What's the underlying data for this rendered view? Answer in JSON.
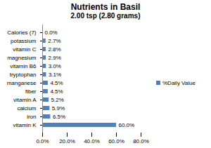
{
  "chart_data": {
    "type": "bar",
    "orientation": "horizontal",
    "title": "Nutrients in Basil",
    "subtitle": "2.00 tsp (2.80 grams)",
    "categories": [
      "Calories (7)",
      "potassium",
      "vitamin C",
      "magnesium",
      "vitamin B6",
      "tryptophan",
      "manganese",
      "fiber",
      "vitamin A",
      "calcium",
      "iron",
      "vitamin K"
    ],
    "series": [
      {
        "name": "%Daily Value",
        "color": "#4f81bd",
        "values": [
          0.0,
          2.7,
          2.8,
          2.9,
          3.0,
          3.1,
          4.5,
          4.5,
          5.2,
          5.9,
          6.5,
          60.0
        ],
        "value_labels": [
          "0.0%",
          "2.7%",
          "2.8%",
          "2.9%",
          "3.0%",
          "3.1%",
          "4.5%",
          "4.5%",
          "5.2%",
          "5.9%",
          "6.5%",
          "60.0%"
        ]
      }
    ],
    "xlim": [
      0,
      80
    ],
    "xticks": [
      {
        "value": 0,
        "label": "0.0%"
      },
      {
        "value": 20,
        "label": "20.0%"
      },
      {
        "value": 40,
        "label": "40.0%"
      },
      {
        "value": 60,
        "label": "60.0%"
      },
      {
        "value": 80,
        "label": "80.0%"
      }
    ],
    "grid": false,
    "data_labels": true,
    "legend": "right"
  }
}
